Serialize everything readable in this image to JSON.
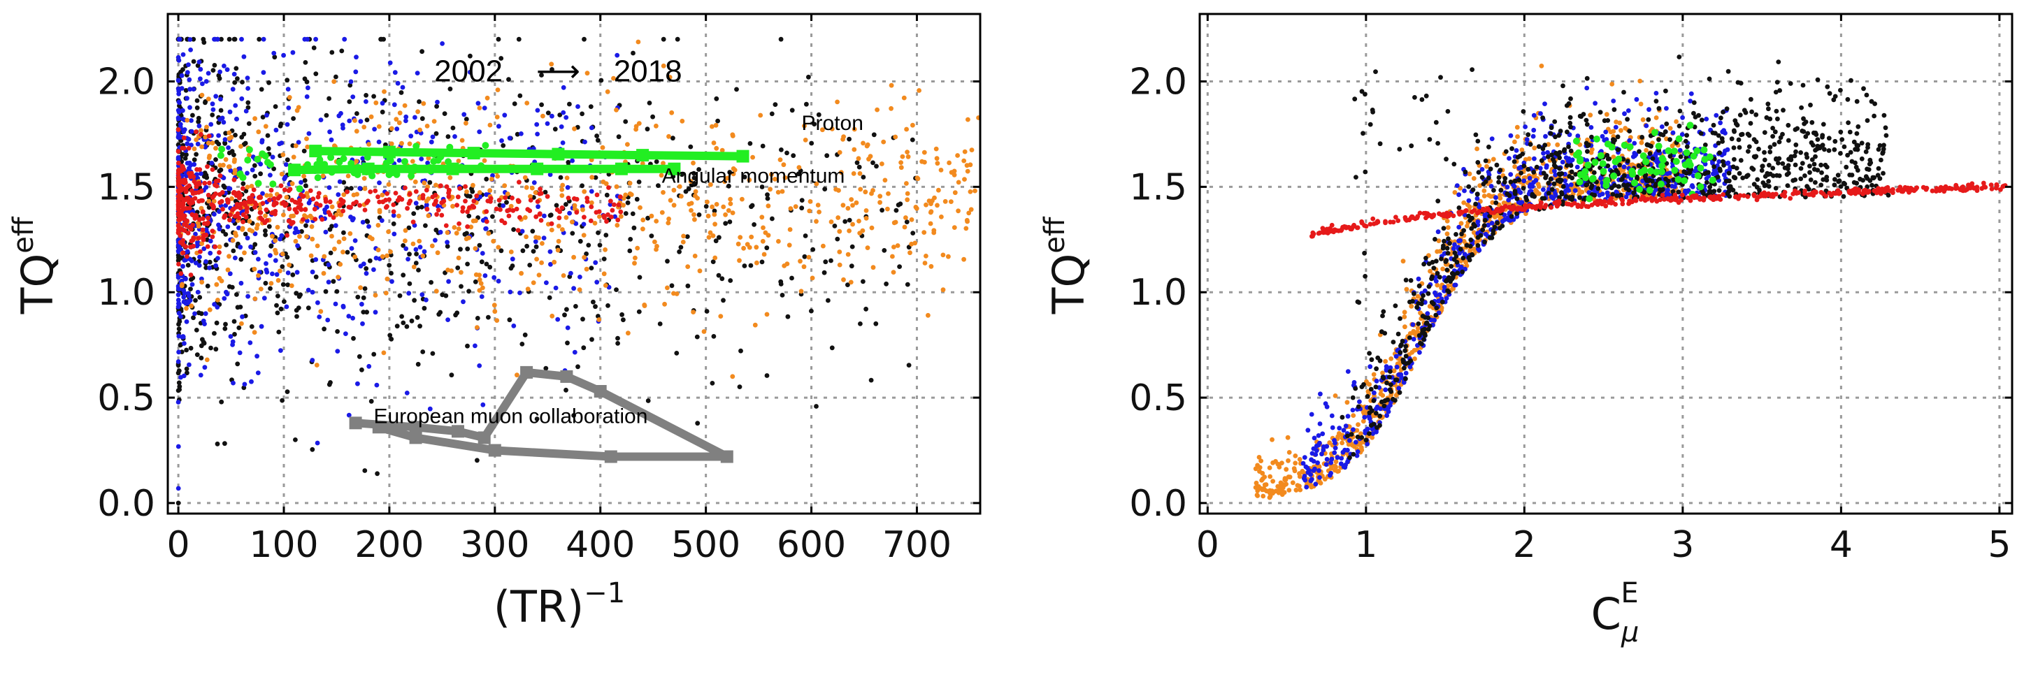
{
  "chart_data": [
    {
      "type": "scatter",
      "panel": "left",
      "xlabel": "(TR)",
      "xlabel_superscript": "−1",
      "ylabel": "TQ",
      "ylabel_superscript": "eff",
      "xlim": [
        -10,
        760
      ],
      "ylim": [
        -0.05,
        2.32
      ],
      "xticks": [
        0,
        100,
        200,
        300,
        400,
        500,
        600,
        700
      ],
      "xtick_labels": [
        "0",
        "100",
        "200",
        "300",
        "400",
        "500",
        "600",
        "700"
      ],
      "yticks": [
        0.0,
        0.5,
        1.0,
        1.5,
        2.0
      ],
      "ytick_labels": [
        "0.0",
        "0.5",
        "1.0",
        "1.5",
        "2.0"
      ],
      "grid": true,
      "annotations": [
        {
          "text": "2002",
          "x": 275,
          "y": 2.0,
          "size": "large"
        },
        {
          "text": "⟶",
          "x": 360,
          "y": 2.0,
          "size": "large"
        },
        {
          "text": "2018",
          "x": 445,
          "y": 2.0,
          "size": "large"
        },
        {
          "text": "Proton",
          "x": 620,
          "y": 1.77,
          "size": "small"
        },
        {
          "text": "Angular momentum",
          "x": 545,
          "y": 1.52,
          "size": "small"
        },
        {
          "text": "European muon collaboration",
          "x": 315,
          "y": 0.38,
          "size": "small"
        }
      ],
      "series": [
        {
          "name": "black",
          "color": "#111111",
          "kind": "cloud",
          "x_range": [
            0,
            700
          ],
          "y_center": 1.35,
          "y_spread": 0.45,
          "n": 900,
          "x_concentration": "near-zero"
        },
        {
          "name": "blue",
          "color": "#1a1ae6",
          "kind": "cloud",
          "x_range": [
            0,
            420
          ],
          "y_center": 1.4,
          "y_spread": 0.4,
          "n": 650,
          "x_concentration": "near-zero"
        },
        {
          "name": "orange",
          "color": "#f28a1e",
          "kind": "cloud",
          "x_range": [
            0,
            760
          ],
          "y_center": 1.4,
          "y_spread": 0.3,
          "n": 700,
          "x_concentration": "spread"
        },
        {
          "name": "red",
          "color": "#e61a1a",
          "kind": "cloud",
          "x_range": [
            0,
            420
          ],
          "y_center": 1.42,
          "y_spread": 0.08,
          "n": 450,
          "x_concentration": "near-zero"
        },
        {
          "name": "green",
          "color": "#22ee22",
          "kind": "cloud",
          "x_range": [
            40,
            300
          ],
          "y_center": 1.6,
          "y_spread": 0.07,
          "n": 60,
          "x_concentration": "spread"
        }
      ],
      "lines": [
        {
          "name": "green line upper",
          "color": "#22ee22",
          "x": [
            130,
            200,
            280,
            360,
            440,
            535
          ],
          "y": [
            1.67,
            1.665,
            1.66,
            1.655,
            1.65,
            1.645
          ]
        },
        {
          "name": "green line lower",
          "color": "#22ee22",
          "x": [
            110,
            180,
            260,
            340,
            420,
            470
          ],
          "y": [
            1.58,
            1.585,
            1.585,
            1.585,
            1.585,
            1.585
          ]
        },
        {
          "name": "grey line (European muon collaboration)",
          "color": "#808080",
          "x": [
            168,
            225,
            265,
            290,
            330,
            368,
            400,
            520,
            410,
            300,
            225,
            190
          ],
          "y": [
            0.38,
            0.36,
            0.34,
            0.31,
            0.62,
            0.6,
            0.53,
            0.22,
            0.22,
            0.25,
            0.31,
            0.36
          ]
        }
      ]
    },
    {
      "type": "scatter",
      "panel": "right",
      "xlabel": "C",
      "xlabel_subscript": "μ",
      "xlabel_superscript": "E",
      "ylabel": "TQ",
      "ylabel_superscript": "eff",
      "xlim": [
        -0.05,
        5.08
      ],
      "ylim": [
        -0.05,
        2.32
      ],
      "xticks": [
        0,
        1,
        2,
        3,
        4,
        5
      ],
      "xtick_labels": [
        "0",
        "1",
        "2",
        "3",
        "4",
        "5"
      ],
      "yticks": [
        0.0,
        0.5,
        1.0,
        1.5,
        2.0
      ],
      "ytick_labels": [
        "0.0",
        "0.5",
        "1.0",
        "1.5",
        "2.0"
      ],
      "grid": true,
      "series": [
        {
          "name": "orange",
          "color": "#f28a1e",
          "kind": "curve-band",
          "x_range": [
            0.3,
            3.0
          ],
          "y_relation": "sigmoid lower envelope",
          "n": 900
        },
        {
          "name": "blue",
          "color": "#1a1ae6",
          "kind": "curve-band",
          "x_range": [
            0.6,
            3.3
          ],
          "y_relation": "sigmoid band",
          "n": 700
        },
        {
          "name": "black",
          "color": "#111111",
          "kind": "curve-band",
          "x_range": [
            0.85,
            4.3
          ],
          "y_relation": "sigmoid band with upper scatter",
          "n": 900
        },
        {
          "name": "green",
          "color": "#22ee22",
          "kind": "cloud",
          "x_range": [
            2.3,
            3.2
          ],
          "y_center": 1.6,
          "y_spread": 0.08,
          "n": 70
        },
        {
          "name": "red",
          "color": "#e61a1a",
          "kind": "curve",
          "x_range": [
            0.65,
            5.05
          ],
          "y_start": 1.27,
          "y_end": 1.5,
          "n": 400
        }
      ]
    }
  ]
}
